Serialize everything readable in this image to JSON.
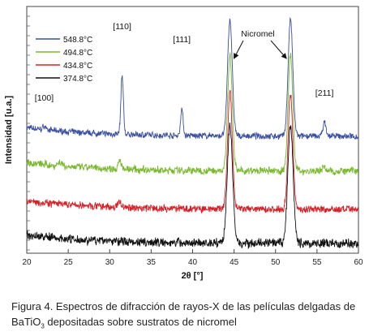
{
  "chart_data": {
    "type": "line",
    "xlabel": "2θ [°]",
    "ylabel": "Intensidad [u.a.]",
    "xlim": [
      20,
      60
    ],
    "xticks": [
      20,
      25,
      30,
      35,
      40,
      45,
      50,
      55,
      60
    ],
    "grid": false,
    "legend_position": "top-left",
    "series": [
      {
        "name": "548.8°C",
        "color": "#3a4fa0",
        "offset": 3,
        "noise": 0.09,
        "peaks": [
          [
            22.1,
            0.4,
            0.15
          ],
          [
            31.5,
            6.0,
            0.15
          ],
          [
            38.7,
            2.7,
            0.15
          ],
          [
            44.5,
            12.0,
            0.28
          ],
          [
            51.8,
            12.0,
            0.28
          ],
          [
            55.9,
            1.4,
            0.2
          ]
        ]
      },
      {
        "name": "494.8°C",
        "color": "#7ab82f",
        "offset": 2,
        "noise": 0.11,
        "peaks": [
          [
            24.0,
            0.4,
            0.25
          ],
          [
            31.2,
            1.0,
            0.18
          ],
          [
            44.5,
            12.0,
            0.28
          ],
          [
            51.8,
            12.0,
            0.28
          ],
          [
            55.8,
            0.5,
            0.2
          ]
        ]
      },
      {
        "name": "434.8°C",
        "color": "#d62027",
        "offset": 1,
        "noise": 0.11,
        "peaks": [
          [
            31.2,
            0.6,
            0.18
          ],
          [
            44.5,
            12.0,
            0.28
          ],
          [
            51.8,
            12.0,
            0.28
          ]
        ]
      },
      {
        "name": "374.8°C",
        "color": "#111111",
        "offset": 0,
        "noise": 0.13,
        "peaks": [
          [
            44.5,
            12.0,
            0.32
          ],
          [
            51.8,
            12.0,
            0.32
          ]
        ]
      }
    ],
    "annotations": [
      {
        "text": "[100]",
        "x": 22.1
      },
      {
        "text": "[110]",
        "x": 31.5
      },
      {
        "text": "[111]",
        "x": 38.7
      },
      {
        "text": "Nicromel",
        "x": 48.0
      },
      {
        "text": "[211]",
        "x": 55.9
      }
    ]
  },
  "caption": {
    "prefix": "Figura 4. Espectros de difracción de rayos-X de las películas delgadas de BaTiO",
    "sub": "3",
    "suffix": " depositadas sobre sustratos de nicromel"
  }
}
